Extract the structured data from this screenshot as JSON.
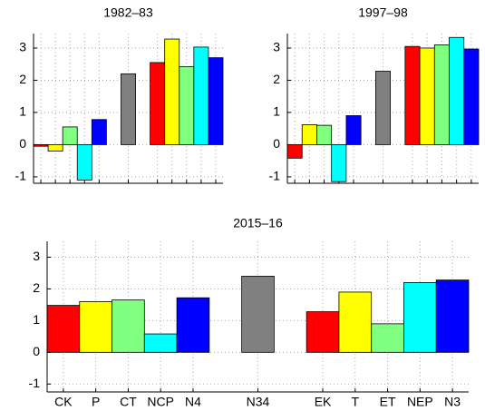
{
  "chart_data": [
    {
      "type": "bar",
      "title": "1982–83",
      "x": [
        1,
        2,
        3,
        4,
        5,
        7,
        9,
        10,
        11,
        12,
        13
      ],
      "values": [
        -0.05,
        -0.2,
        0.55,
        -1.1,
        0.78,
        2.2,
        2.55,
        3.28,
        2.42,
        3.03,
        2.7
      ],
      "colors": [
        "#ff0000",
        "#ffff00",
        "#80ff80",
        "#00ffff",
        "#0000ff",
        "#808080",
        "#ff0000",
        "#ffff00",
        "#80ff80",
        "#00ffff",
        "#0000ff"
      ],
      "xlim": [
        0.5,
        13.5
      ],
      "ylim": [
        -1.2,
        3.45
      ],
      "yticks": [
        -1,
        0,
        1,
        2,
        3
      ],
      "grid": true
    },
    {
      "type": "bar",
      "title": "1997–98",
      "x": [
        1,
        2,
        3,
        4,
        5,
        7,
        9,
        10,
        11,
        12,
        13
      ],
      "values": [
        -0.42,
        0.62,
        0.6,
        -1.15,
        0.9,
        2.28,
        3.05,
        3.0,
        3.1,
        3.33,
        2.97
      ],
      "colors": [
        "#ff0000",
        "#ffff00",
        "#80ff80",
        "#00ffff",
        "#0000ff",
        "#808080",
        "#ff0000",
        "#ffff00",
        "#80ff80",
        "#00ffff",
        "#0000ff"
      ],
      "xlim": [
        0.5,
        13.5
      ],
      "ylim": [
        -1.2,
        3.45
      ],
      "yticks": [
        -1,
        0,
        1,
        2,
        3
      ],
      "grid": true
    },
    {
      "type": "bar",
      "title": "2015–16",
      "x": [
        1,
        2,
        3,
        4,
        5,
        7,
        9,
        10,
        11,
        12,
        13
      ],
      "values": [
        1.48,
        1.6,
        1.65,
        0.58,
        1.72,
        2.4,
        1.28,
        1.9,
        0.9,
        2.2,
        2.28
      ],
      "colors": [
        "#ff0000",
        "#ffff00",
        "#80ff80",
        "#00ffff",
        "#0000ff",
        "#808080",
        "#ff0000",
        "#ffff00",
        "#80ff80",
        "#00ffff",
        "#0000ff"
      ],
      "xlim": [
        0.5,
        13.5
      ],
      "ylim": [
        -1.25,
        3.5
      ],
      "yticks": [
        -1,
        0,
        1,
        2,
        3
      ],
      "xticks": [
        {
          "value": 1,
          "label": "CK"
        },
        {
          "value": 2,
          "label": "P"
        },
        {
          "value": 3,
          "label": "CT"
        },
        {
          "value": 4,
          "label": "NCP"
        },
        {
          "value": 5,
          "label": "N4"
        },
        {
          "value": 7,
          "label": "N34"
        },
        {
          "value": 9,
          "label": "EK"
        },
        {
          "value": 10,
          "label": "T"
        },
        {
          "value": 11,
          "label": "ET"
        },
        {
          "value": 12,
          "label": "NEP"
        },
        {
          "value": 13,
          "label": "N3"
        }
      ],
      "grid": true
    }
  ]
}
